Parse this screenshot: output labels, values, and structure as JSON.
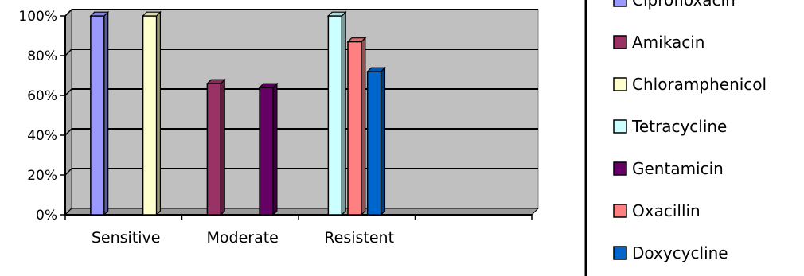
{
  "chart_data": {
    "type": "bar",
    "categories": [
      "Sensitive",
      "Moderate",
      "Resistent"
    ],
    "series": [
      {
        "name": "Ciprofloxacin",
        "values": [
          100,
          null,
          null
        ],
        "color": "#9999ff"
      },
      {
        "name": "Amikacin",
        "values": [
          null,
          66,
          null
        ],
        "color": "#993366"
      },
      {
        "name": "Chloramphenicol",
        "values": [
          100,
          null,
          null
        ],
        "color": "#ffffcc"
      },
      {
        "name": "Tetracycline",
        "values": [
          null,
          null,
          100
        ],
        "color": "#ccffff"
      },
      {
        "name": "Gentamicin",
        "values": [
          null,
          64,
          null
        ],
        "color": "#660066"
      },
      {
        "name": "Oxacillin",
        "values": [
          null,
          null,
          87
        ],
        "color": "#ff8080"
      },
      {
        "name": "Doxycycline",
        "values": [
          null,
          null,
          72
        ],
        "color": "#0066cc"
      }
    ],
    "yticks": [
      "0%",
      "20%",
      "40%",
      "60%",
      "80%",
      "100%"
    ],
    "ylim": [
      0,
      100
    ],
    "grid": true,
    "legend_position": "right",
    "title": "",
    "xlabel": "",
    "ylabel": ""
  }
}
